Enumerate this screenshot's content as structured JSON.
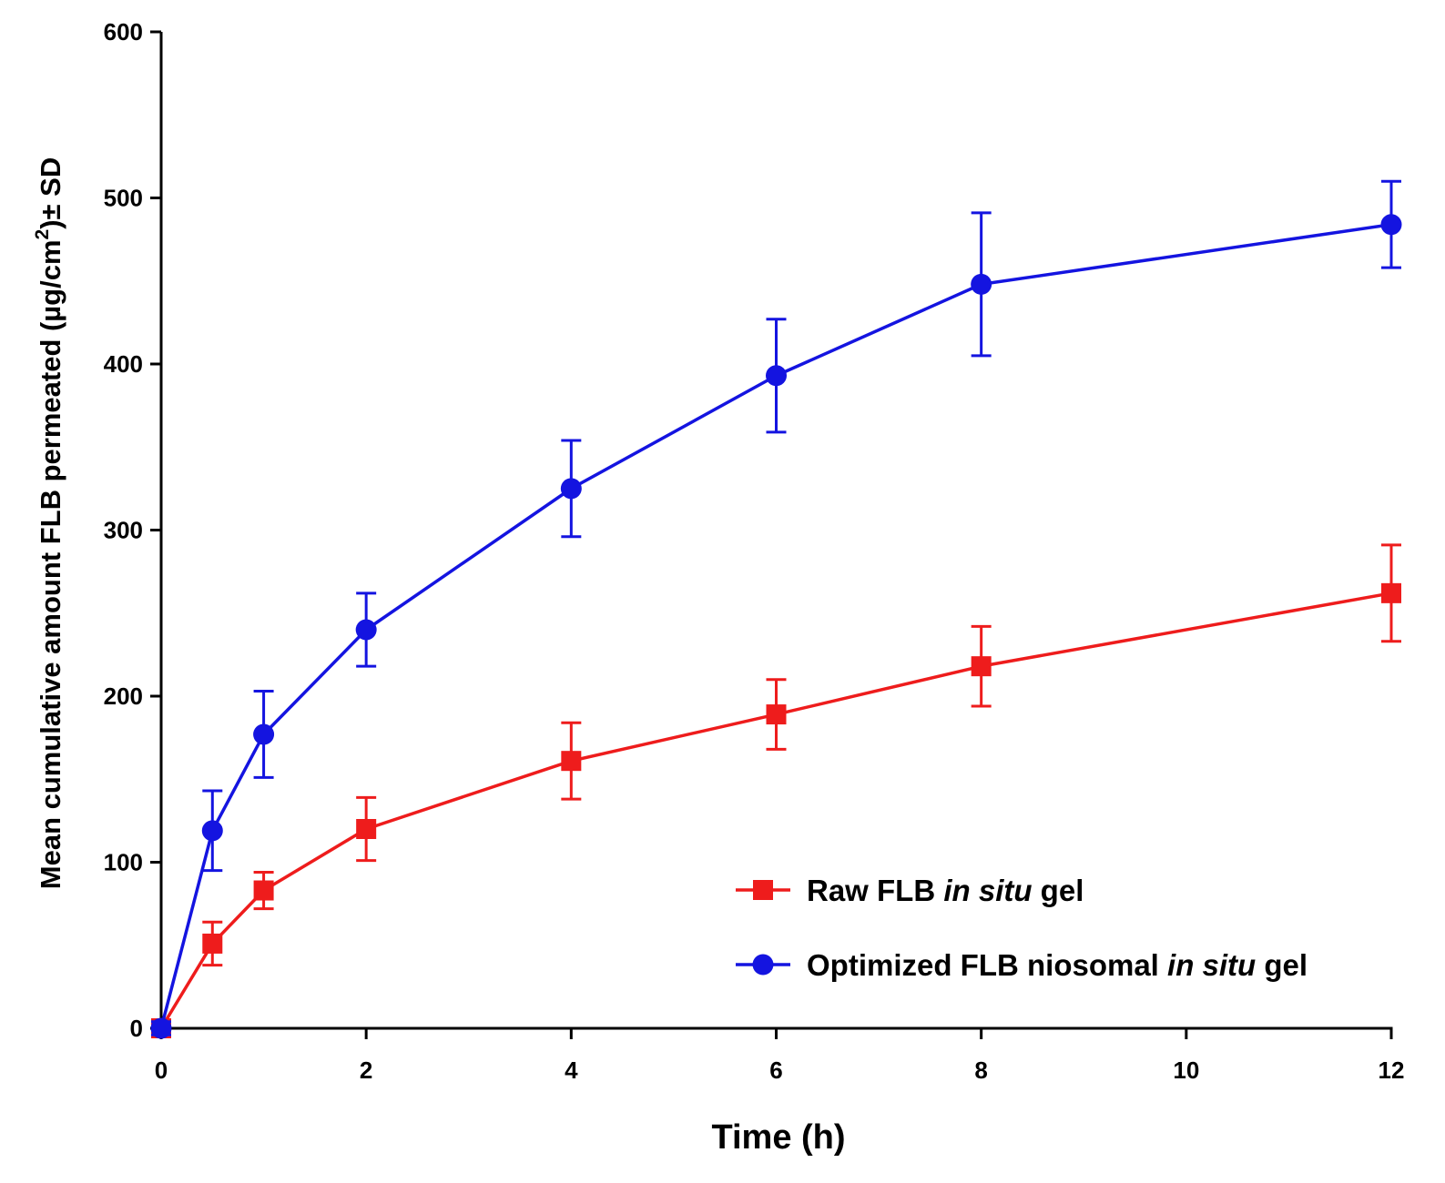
{
  "chart_data": {
    "type": "line",
    "title": "",
    "xlabel": "Time (h)",
    "ylabel": {
      "prefix": "Mean cumulative amount FLB permeated (",
      "unit_main": "µg/cm",
      "unit_sup": "2",
      "suffix": ")± SD"
    },
    "xlim": [
      0,
      12
    ],
    "ylim": [
      0,
      600
    ],
    "x_ticks": [
      0,
      2,
      4,
      6,
      8,
      10,
      12
    ],
    "y_ticks": [
      0,
      100,
      200,
      300,
      400,
      500,
      600
    ],
    "x": [
      0,
      0.5,
      1,
      2,
      4,
      6,
      8,
      12
    ],
    "grid": false,
    "legend_position": "bottom-right",
    "series": [
      {
        "name": "Raw FLB in situ gel",
        "legend_parts": [
          {
            "text": "Raw FLB ",
            "italic": false
          },
          {
            "text": "in situ",
            "italic": true
          },
          {
            "text": " gel",
            "italic": false
          }
        ],
        "color": "#ee1c1c",
        "marker": "square",
        "values": [
          0,
          51,
          83,
          120,
          161,
          189,
          218,
          262
        ],
        "errors": [
          4,
          13,
          11,
          19,
          23,
          21,
          24,
          29
        ]
      },
      {
        "name": "Optimized FLB niosomal in situ gel",
        "legend_parts": [
          {
            "text": "Optimized FLB niosomal ",
            "italic": false
          },
          {
            "text": "in situ",
            "italic": true
          },
          {
            "text": " gel",
            "italic": false
          }
        ],
        "color": "#1414e0",
        "marker": "circle",
        "values": [
          0,
          119,
          177,
          240,
          325,
          393,
          448,
          484
        ],
        "errors": [
          4,
          24,
          26,
          22,
          29,
          34,
          43,
          26
        ]
      }
    ]
  }
}
